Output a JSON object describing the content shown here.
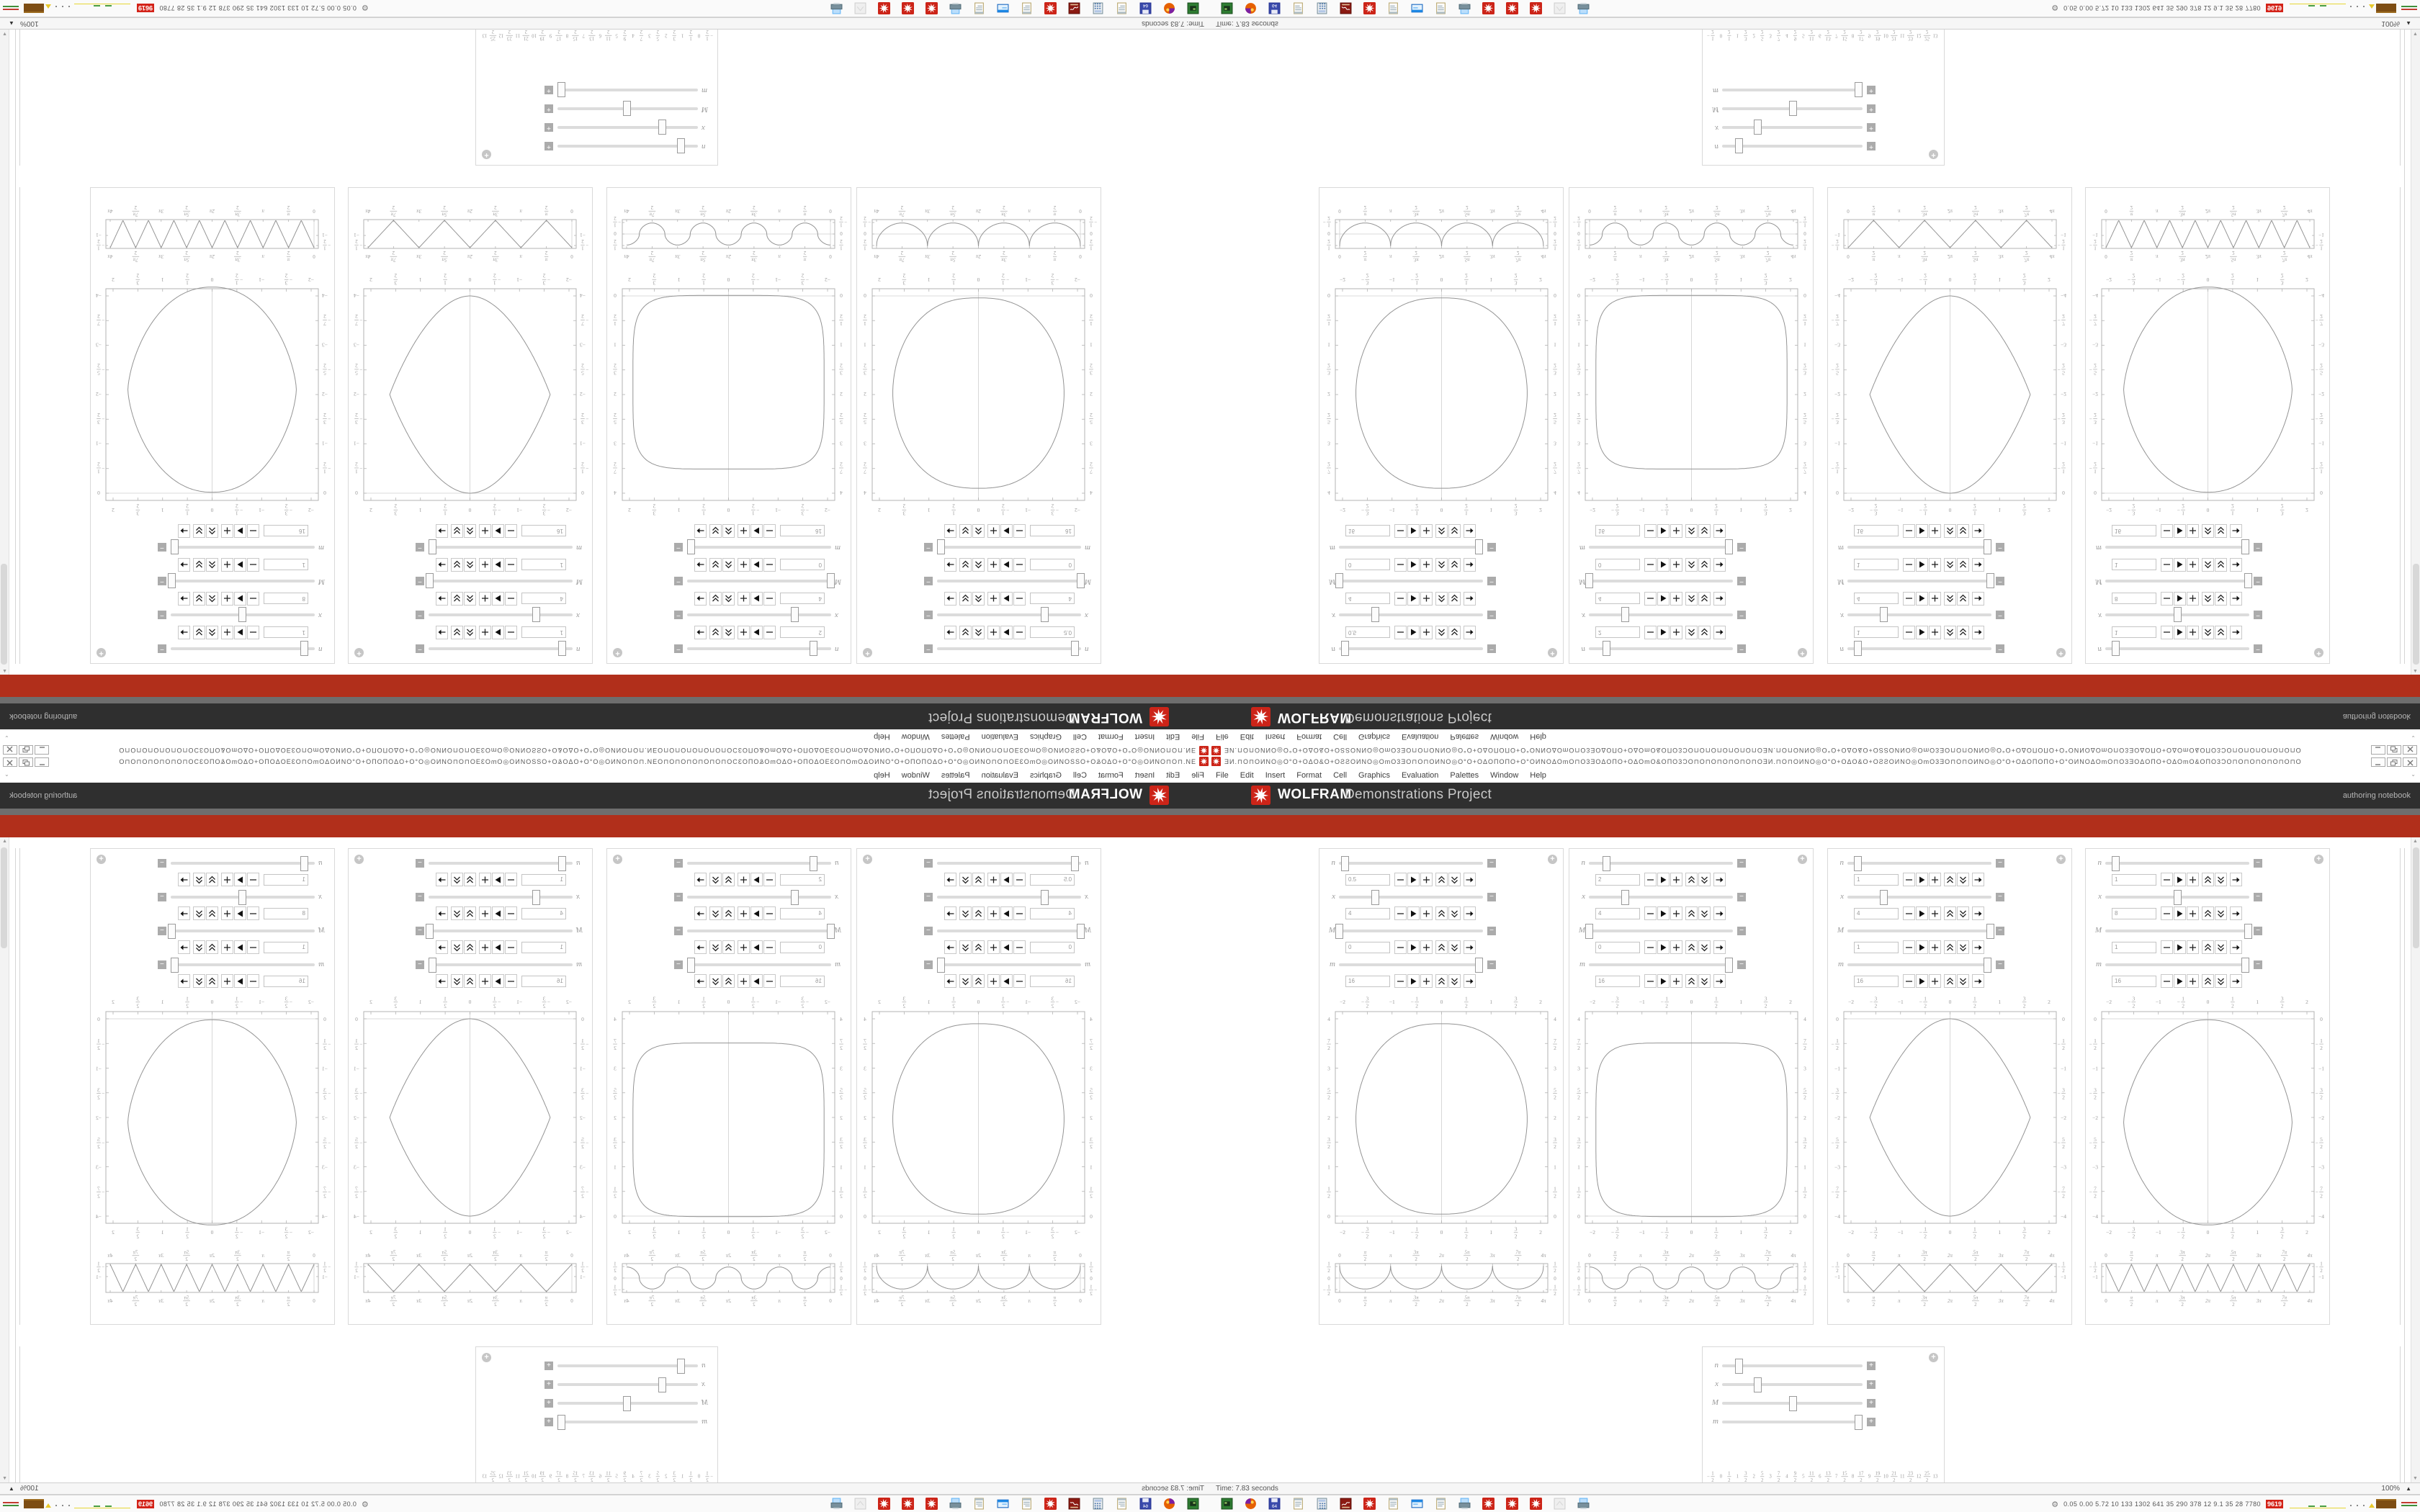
{
  "window": {
    "title_glyphs": "ƎИ.⊓O⊓OИNO◎O°O+OΔO&O+OƧƧOИNO◎OmO3ƎO⊓O⊓OИNO◎O°O+OΔOΠOΠO+O°OИNOΔOmO⊓O3ƎOΔOΠO+OΔOmO&OΠO3ƆO⊓O⊓O⊓O⊓O⊓O⊓OƎИ.⊓O⊓OИNO◎O°O+OΔO&O+OƧƧOИNO◎OmO3ƎO⊓O⊓OИNO◎O°O+OΔOΠOΠO+O°OИNOΔOmO⊓O3ƎOΔOΠO+OΔOmO&OΠO3ƆO⊓O⊓O⊓O⊓O⊓O⊓O",
    "buttons": [
      "minimize",
      "restore",
      "close"
    ]
  },
  "menu_bar": {
    "items": [
      "File",
      "Edit",
      "Insert",
      "Format",
      "Cell",
      "Graphics",
      "Evaluation",
      "Palettes",
      "Window",
      "Help"
    ],
    "chevron": "⌄"
  },
  "brand_bar": {
    "wolfram": "WOLFRAM",
    "suffix": "Demonstrations Project",
    "right_label": "authoring notebook"
  },
  "status_bar": {
    "time": "Time: 7.83 seconds",
    "zoom": "100%",
    "tri": "▲"
  },
  "taskbar": {
    "icons": [
      "vm-green",
      "firefox",
      "floppy64",
      "notepad",
      "calculator",
      "red-book",
      "spikey-red",
      "notepad",
      "window-blue",
      "notepad",
      "printer-doc",
      "spikey-red",
      "spikey-red",
      "spikey-red",
      "ghost-gray",
      "printer-doc"
    ],
    "tray": {
      "gear": "⚙",
      "numbers": "0.05 0.00 5.72  10  133 1302 641  35  290  378  12  9.1  35  28  7780",
      "badge": "9619"
    }
  },
  "colors": {
    "banner_red": "#b12f1b",
    "header_dark": "#2f2f2f",
    "header_gray": "#6e6e6e",
    "spikey_red": "#cc2418",
    "plot_stroke": "#909090",
    "tick_label": "#9a9a9a"
  },
  "chart_data": {
    "manipulate_panels": [
      {
        "name": "panel-1",
        "sliders": [
          {
            "label": "n",
            "value": "0.5",
            "pos": 0.04
          },
          {
            "label": "x",
            "value": "4",
            "pos": 0.25
          },
          {
            "label": "M",
            "value": "0",
            "pos": 0.0
          },
          {
            "label": "m",
            "value": "16",
            "pos": 0.97
          }
        ],
        "big_plot": {
          "type": "line",
          "xticks": [
            "-2",
            "-3/2",
            "-1",
            "-1/2",
            "0",
            "1/2",
            "1",
            "3/2",
            "2"
          ],
          "yticks": [
            "0",
            "1/2",
            "1",
            "3/2",
            "2",
            "5/2",
            "3",
            "7/2",
            "4"
          ],
          "xlim": [
            -2,
            2
          ],
          "ylim": [
            0,
            4
          ],
          "curve": {
            "kind": "blob",
            "ex": 0.8,
            "ey": 1.05,
            "a": 1.73,
            "b": 1.93,
            "cy": 1.97
          }
        },
        "strip_plot": {
          "type": "line",
          "xticks": [
            "0",
            "π/2",
            "π",
            "3π/2",
            "2π",
            "5π/2",
            "3π",
            "7π/2",
            "4π"
          ],
          "yticks": [
            {
              "label": "1/2",
              "pos": 0.1
            },
            {
              "label": "0",
              "pos": 0.5
            },
            {
              "label": "-1/2",
              "pos": 0.9
            }
          ],
          "midline": true,
          "curve": {
            "kind": "cusp",
            "amp": 0.5,
            "exp": 0.45,
            "scale": 0.95
          }
        }
      },
      {
        "name": "panel-2",
        "sliders": [
          {
            "label": "n",
            "value": "2",
            "pos": 0.12
          },
          {
            "label": "x",
            "value": "4",
            "pos": 0.25
          },
          {
            "label": "M",
            "value": "0",
            "pos": 0.0
          },
          {
            "label": "m",
            "value": "16",
            "pos": 0.97
          }
        ],
        "big_plot": {
          "type": "line",
          "xticks": [
            "-2",
            "-3/2",
            "-1",
            "-1/2",
            "0",
            "1/2",
            "1",
            "3/2",
            "2"
          ],
          "yticks": [
            "0",
            "1/2",
            "1",
            "3/2",
            "2",
            "5/2",
            "3",
            "7/2",
            "4"
          ],
          "xlim": [
            -2,
            2
          ],
          "ylim": [
            0,
            4
          ],
          "curve": {
            "kind": "blob",
            "ex": 0.34,
            "ey": 0.42,
            "a": 1.93,
            "b": 1.76,
            "cy": 1.75
          }
        },
        "strip_plot": {
          "type": "line",
          "xticks": [
            "0",
            "π/2",
            "π",
            "3π/2",
            "2π",
            "5π/2",
            "3π",
            "7π/2",
            "4π"
          ],
          "yticks": [
            {
              "label": "1/2",
              "pos": 0.1
            },
            {
              "label": "0",
              "pos": 0.5
            },
            {
              "label": "-1/2",
              "pos": 0.9
            }
          ],
          "midline": true,
          "curve": {
            "kind": "sqwave",
            "amp": 0.45,
            "exp": 0.5
          }
        }
      },
      {
        "name": "panel-3",
        "sliders": [
          {
            "label": "n",
            "value": "1",
            "pos": 0.07
          },
          {
            "label": "x",
            "value": "4",
            "pos": 0.25
          },
          {
            "label": "M",
            "value": "1",
            "pos": 0.99
          },
          {
            "label": "m",
            "value": "16",
            "pos": 0.97
          }
        ],
        "big_plot": {
          "type": "line",
          "xticks": [
            "-2",
            "-3/2",
            "-1",
            "-1/2",
            "0",
            "1/2",
            "1",
            "3/2",
            "2"
          ],
          "yticks": [
            "0",
            "-1/2",
            "-1",
            "-3/2",
            "-2",
            "-5/2",
            "-3",
            "-7/2",
            "-4"
          ],
          "xlim": [
            -2,
            2
          ],
          "ylim": [
            -4,
            0
          ],
          "curve": {
            "kind": "blob",
            "ex": 1.05,
            "ey": 1.9,
            "a": 1.62,
            "b": 2.0,
            "cy": -2.0
          }
        },
        "strip_plot": {
          "type": "line",
          "xticks": [
            "0",
            "π/2",
            "π",
            "3π/2",
            "2π",
            "5π/2",
            "3π",
            "7π/2",
            "4π"
          ],
          "yticks": [
            {
              "label": "-1/2",
              "pos": 0.1
            },
            {
              "label": "-1",
              "pos": 0.45
            }
          ],
          "midline": false,
          "curve": {
            "kind": "tri",
            "period": 3.14159265
          }
        }
      },
      {
        "name": "panel-4",
        "sliders": [
          {
            "label": "n",
            "value": "1",
            "pos": 0.07
          },
          {
            "label": "x",
            "value": "8",
            "pos": 0.5
          },
          {
            "label": "M",
            "value": "1",
            "pos": 0.99
          },
          {
            "label": "m",
            "value": "16",
            "pos": 0.97
          }
        ],
        "big_plot": {
          "type": "line",
          "xticks": [
            "-2",
            "-3/2",
            "-1",
            "-1/2",
            "0",
            "1/2",
            "1",
            "3/2",
            "2"
          ],
          "yticks": [
            "0",
            "-1/2",
            "-1",
            "-3/2",
            "-2",
            "-5/2",
            "-3",
            "-7/2",
            "-4"
          ],
          "xlim": [
            -2,
            2
          ],
          "ylim": [
            -4,
            0
          ],
          "curve": {
            "kind": "blob",
            "ex": 0.92,
            "ey": 1.3,
            "a": 1.7,
            "b": 2.08,
            "cy": -2.1
          }
        },
        "strip_plot": {
          "type": "line",
          "xticks": [
            "0",
            "π/2",
            "π",
            "3π/2",
            "2π",
            "5π/2",
            "3π",
            "7π/2",
            "4π"
          ],
          "yticks": [
            {
              "label": "-1/2",
              "pos": 0.1
            },
            {
              "label": "-1",
              "pos": 0.45
            }
          ],
          "midline": false,
          "curve": {
            "kind": "tri",
            "period": 1.57079633
          }
        }
      }
    ],
    "wide_panel": {
      "name": "panel-5",
      "sliders": [
        {
          "label": "n",
          "pos": 0.12
        },
        {
          "label": "x",
          "pos": 0.25
        },
        {
          "label": "M",
          "pos": 0.5
        },
        {
          "label": "m",
          "pos": 0.97
        }
      ],
      "plot": {
        "type": "line",
        "xticks": [
          "-1/2",
          "0",
          "1/2",
          "1",
          "3/2",
          "2",
          "5/2",
          "3",
          "7/2",
          "4",
          "9/2",
          "5",
          "11/2",
          "6",
          "13/2",
          "7",
          "15/2",
          "8",
          "17/2",
          "9",
          "19/2",
          "10",
          "21/2",
          "11",
          "23/2",
          "12",
          "25/2",
          "13"
        ],
        "side_label": "0",
        "xlim": [
          -0.5,
          13
        ],
        "curve": {
          "kind": "sine",
          "amp": 0.42,
          "period": 13.5,
          "x0": -0.5,
          "x1": 13
        }
      }
    }
  }
}
